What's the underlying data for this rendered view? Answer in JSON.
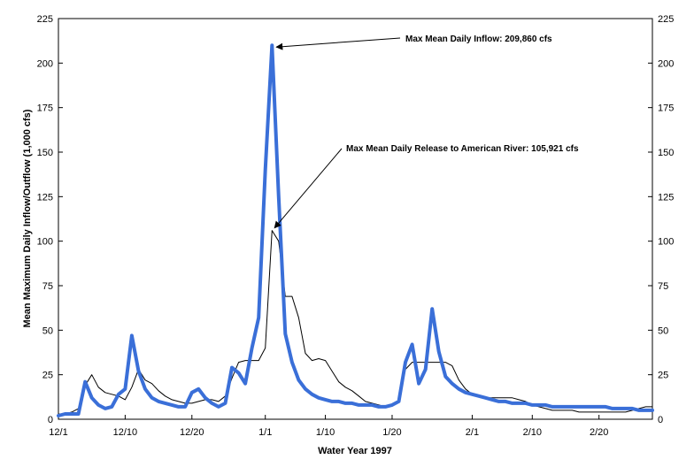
{
  "chart_data": {
    "type": "line",
    "xlabel": "Water Year 1997",
    "ylabel": "Mean Maximum Daily Inflow/Outflow (1,000 cfs)",
    "ylim": [
      0,
      225
    ],
    "yticks": [
      0,
      25,
      50,
      75,
      100,
      125,
      150,
      175,
      200,
      225
    ],
    "x_ticks": [
      {
        "day": 0,
        "label": "12/1"
      },
      {
        "day": 10,
        "label": "12/10"
      },
      {
        "day": 20,
        "label": "12/20"
      },
      {
        "day": 31,
        "label": "1/1"
      },
      {
        "day": 40,
        "label": "1/10"
      },
      {
        "day": 50,
        "label": "1/20"
      },
      {
        "day": 62,
        "label": "2/1"
      },
      {
        "day": 71,
        "label": "2/10"
      },
      {
        "day": 81,
        "label": "2/20"
      }
    ],
    "xlim": [
      0,
      89
    ],
    "grid": false,
    "series": [
      {
        "color": "#3a6fd8",
        "points": [
          [
            0,
            2
          ],
          [
            1,
            3
          ],
          [
            2,
            3
          ],
          [
            3,
            3
          ],
          [
            4,
            21
          ],
          [
            5,
            12
          ],
          [
            6,
            8
          ],
          [
            7,
            6
          ],
          [
            8,
            7
          ],
          [
            9,
            14
          ],
          [
            10,
            17
          ],
          [
            11,
            47
          ],
          [
            12,
            27
          ],
          [
            13,
            17
          ],
          [
            14,
            12
          ],
          [
            15,
            10
          ],
          [
            16,
            9
          ],
          [
            17,
            8
          ],
          [
            18,
            7
          ],
          [
            19,
            7
          ],
          [
            20,
            15
          ],
          [
            21,
            17
          ],
          [
            22,
            12
          ],
          [
            23,
            9
          ],
          [
            24,
            7
          ],
          [
            25,
            9
          ],
          [
            26,
            29
          ],
          [
            27,
            26
          ],
          [
            28,
            20
          ],
          [
            29,
            40
          ],
          [
            30,
            57
          ],
          [
            31,
            140
          ],
          [
            32,
            210
          ],
          [
            33,
            125
          ],
          [
            34,
            48
          ],
          [
            35,
            32
          ],
          [
            36,
            22
          ],
          [
            37,
            17
          ],
          [
            38,
            14
          ],
          [
            39,
            12
          ],
          [
            40,
            11
          ],
          [
            41,
            10
          ],
          [
            42,
            10
          ],
          [
            43,
            9
          ],
          [
            44,
            9
          ],
          [
            45,
            8
          ],
          [
            46,
            8
          ],
          [
            47,
            8
          ],
          [
            48,
            7
          ],
          [
            49,
            7
          ],
          [
            50,
            8
          ],
          [
            51,
            10
          ],
          [
            52,
            32
          ],
          [
            53,
            42
          ],
          [
            54,
            20
          ],
          [
            55,
            28
          ],
          [
            56,
            62
          ],
          [
            57,
            38
          ],
          [
            58,
            24
          ],
          [
            59,
            20
          ],
          [
            60,
            17
          ],
          [
            61,
            15
          ],
          [
            62,
            14
          ],
          [
            63,
            13
          ],
          [
            64,
            12
          ],
          [
            65,
            11
          ],
          [
            66,
            10
          ],
          [
            67,
            10
          ],
          [
            68,
            9
          ],
          [
            69,
            9
          ],
          [
            70,
            9
          ],
          [
            71,
            8
          ],
          [
            72,
            8
          ],
          [
            73,
            8
          ],
          [
            74,
            7
          ],
          [
            75,
            7
          ],
          [
            76,
            7
          ],
          [
            77,
            7
          ],
          [
            78,
            7
          ],
          [
            79,
            7
          ],
          [
            80,
            7
          ],
          [
            81,
            7
          ],
          [
            82,
            7
          ],
          [
            83,
            6
          ],
          [
            84,
            6
          ],
          [
            85,
            6
          ],
          [
            86,
            6
          ],
          [
            87,
            5
          ],
          [
            88,
            5
          ],
          [
            89,
            5
          ]
        ]
      },
      {
        "color": "#000000",
        "points": [
          [
            0,
            3
          ],
          [
            1,
            3
          ],
          [
            2,
            4
          ],
          [
            3,
            6
          ],
          [
            4,
            19
          ],
          [
            5,
            25
          ],
          [
            6,
            18
          ],
          [
            7,
            15
          ],
          [
            8,
            14
          ],
          [
            9,
            13
          ],
          [
            10,
            11
          ],
          [
            11,
            18
          ],
          [
            12,
            28
          ],
          [
            13,
            22
          ],
          [
            14,
            20
          ],
          [
            15,
            16
          ],
          [
            16,
            13
          ],
          [
            17,
            11
          ],
          [
            18,
            10
          ],
          [
            19,
            9
          ],
          [
            20,
            9
          ],
          [
            21,
            10
          ],
          [
            22,
            11
          ],
          [
            23,
            11
          ],
          [
            24,
            10
          ],
          [
            25,
            13
          ],
          [
            26,
            23
          ],
          [
            27,
            32
          ],
          [
            28,
            33
          ],
          [
            29,
            33
          ],
          [
            30,
            33
          ],
          [
            31,
            40
          ],
          [
            32,
            106
          ],
          [
            33,
            100
          ],
          [
            34,
            69
          ],
          [
            35,
            69
          ],
          [
            36,
            57
          ],
          [
            37,
            37
          ],
          [
            38,
            33
          ],
          [
            39,
            34
          ],
          [
            40,
            33
          ],
          [
            41,
            27
          ],
          [
            42,
            21
          ],
          [
            43,
            18
          ],
          [
            44,
            16
          ],
          [
            45,
            13
          ],
          [
            46,
            10
          ],
          [
            47,
            9
          ],
          [
            48,
            8
          ],
          [
            49,
            7
          ],
          [
            50,
            8
          ],
          [
            51,
            10
          ],
          [
            52,
            28
          ],
          [
            53,
            32
          ],
          [
            54,
            32
          ],
          [
            55,
            32
          ],
          [
            56,
            32
          ],
          [
            57,
            32
          ],
          [
            58,
            32
          ],
          [
            59,
            30
          ],
          [
            60,
            22
          ],
          [
            61,
            17
          ],
          [
            62,
            14
          ],
          [
            63,
            13
          ],
          [
            64,
            12
          ],
          [
            65,
            12
          ],
          [
            66,
            12
          ],
          [
            67,
            12
          ],
          [
            68,
            12
          ],
          [
            69,
            11
          ],
          [
            70,
            10
          ],
          [
            71,
            8
          ],
          [
            72,
            7
          ],
          [
            73,
            6
          ],
          [
            74,
            5
          ],
          [
            75,
            5
          ],
          [
            76,
            5
          ],
          [
            77,
            5
          ],
          [
            78,
            4
          ],
          [
            79,
            4
          ],
          [
            80,
            4
          ],
          [
            81,
            4
          ],
          [
            82,
            4
          ],
          [
            83,
            4
          ],
          [
            84,
            4
          ],
          [
            85,
            4
          ],
          [
            86,
            5
          ],
          [
            87,
            6
          ],
          [
            88,
            7
          ],
          [
            89,
            7
          ]
        ]
      }
    ],
    "annotations": [
      {
        "text": "Max Mean Daily Inflow: 209,860 cfs",
        "target": [
          32,
          210
        ]
      },
      {
        "text": "Max Mean Daily Release to American River:  105,921 cfs",
        "target": [
          32,
          106
        ]
      }
    ]
  }
}
